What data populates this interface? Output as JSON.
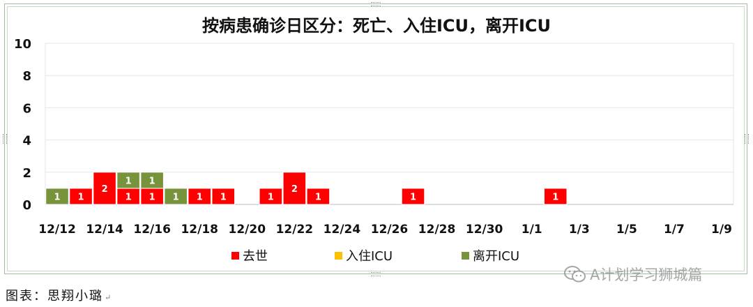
{
  "chart_data": {
    "type": "bar",
    "stacked": true,
    "title": "按病患确诊日区分：死亡、入住ICU，离开ICU",
    "xlabel": "",
    "ylabel": "",
    "ylim": [
      0,
      10
    ],
    "yticks": [
      0,
      2,
      4,
      6,
      8,
      10
    ],
    "xtick_labels": [
      "12/12",
      "12/14",
      "12/16",
      "12/18",
      "12/20",
      "12/22",
      "12/24",
      "12/26",
      "12/28",
      "12/30",
      "1/1",
      "1/3",
      "1/5",
      "1/7",
      "1/9"
    ],
    "grid": true,
    "legend_position": "bottom",
    "categories": [
      "12/12",
      "12/13",
      "12/14",
      "12/15",
      "12/16",
      "12/17",
      "12/18",
      "12/19",
      "12/20",
      "12/21",
      "12/22",
      "12/23",
      "12/24",
      "12/25",
      "12/26",
      "12/27",
      "12/28",
      "12/29",
      "12/30",
      "12/31",
      "1/1",
      "1/2",
      "1/3",
      "1/4",
      "1/5",
      "1/6",
      "1/7",
      "1/8",
      "1/9"
    ],
    "series": [
      {
        "name": "去世",
        "color": "#ff0000",
        "values": [
          0,
          1,
          2,
          1,
          1,
          0,
          1,
          1,
          0,
          1,
          2,
          1,
          0,
          0,
          0,
          1,
          0,
          0,
          0,
          0,
          0,
          1,
          0,
          0,
          0,
          0,
          0,
          0,
          0
        ]
      },
      {
        "name": "入住ICU",
        "color": "#ffc000",
        "values": [
          0,
          0,
          0,
          0,
          0,
          0,
          0,
          0,
          0,
          0,
          0,
          0,
          0,
          0,
          0,
          0,
          0,
          0,
          0,
          0,
          0,
          0,
          0,
          0,
          0,
          0,
          0,
          0,
          0
        ]
      },
      {
        "name": "离开ICU",
        "color": "#77933c",
        "values": [
          1,
          0,
          0,
          1,
          1,
          1,
          0,
          0,
          0,
          0,
          0,
          0,
          0,
          0,
          0,
          0,
          0,
          0,
          0,
          0,
          0,
          0,
          0,
          0,
          0,
          0,
          0,
          0,
          0
        ]
      }
    ]
  },
  "caption": "图表：思翔小璐",
  "watermark": "A计划学习狮城篇",
  "icons": {
    "watermark": "wechat-icon"
  }
}
